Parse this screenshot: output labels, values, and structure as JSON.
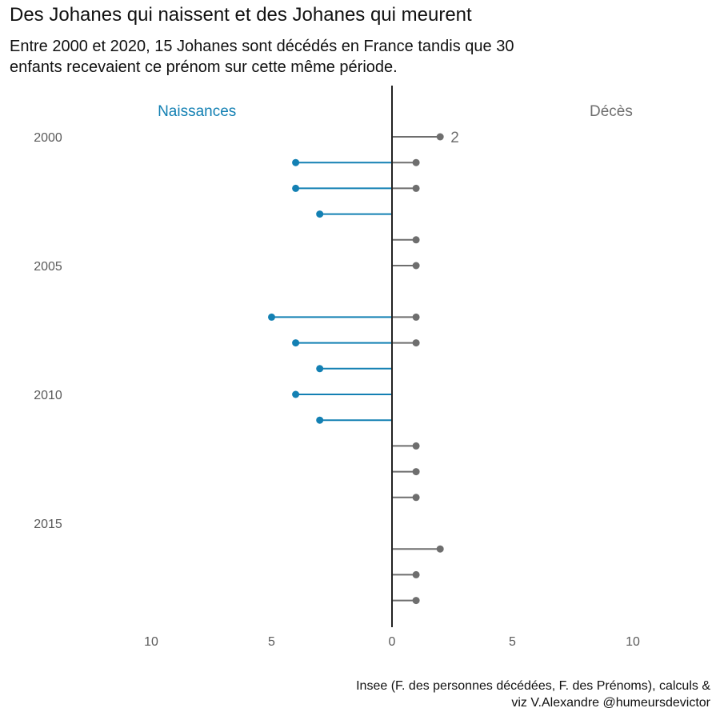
{
  "title": "Des Johanes qui naissent et des Johanes qui meurent",
  "subtitle": [
    "Entre 2000 et 2020, 15 Johanes sont décédés en France tandis que 30",
    "enfants recevaient ce prénom sur cette même période."
  ],
  "caption": [
    "Insee (F. des personnes décédées, F. des Prénoms), calculs &",
    "viz V.Alexandre @humeursdevictor"
  ],
  "colors": {
    "naissances": "#1380b3",
    "deces": "#6e6e6e",
    "axis": "#222222"
  },
  "chart_data": {
    "type": "lollipop",
    "side_labels": {
      "left": "Naissances",
      "right": "Décès"
    },
    "y_ticks": [
      2000,
      2005,
      2010,
      2015
    ],
    "y_tick_labels": [
      "2000",
      "2005",
      "2010",
      "2015"
    ],
    "x_ticks": [
      -10,
      -5,
      0,
      5,
      10
    ],
    "x_tick_labels": [
      "10",
      "5",
      "0",
      "5",
      "10"
    ],
    "xlim": [
      -10,
      10
    ],
    "ylim": [
      2000,
      2018
    ],
    "series": [
      {
        "name": "Naissances",
        "points": [
          {
            "year": 2001,
            "value": 4
          },
          {
            "year": 2002,
            "value": 4
          },
          {
            "year": 2003,
            "value": 3
          },
          {
            "year": 2007,
            "value": 5
          },
          {
            "year": 2008,
            "value": 4
          },
          {
            "year": 2009,
            "value": 3
          },
          {
            "year": 2010,
            "value": 4
          },
          {
            "year": 2011,
            "value": 3
          }
        ]
      },
      {
        "name": "Décès",
        "points": [
          {
            "year": 2000,
            "value": 2
          },
          {
            "year": 2001,
            "value": 1
          },
          {
            "year": 2002,
            "value": 1
          },
          {
            "year": 2004,
            "value": 1
          },
          {
            "year": 2005,
            "value": 1
          },
          {
            "year": 2007,
            "value": 1
          },
          {
            "year": 2008,
            "value": 1
          },
          {
            "year": 2012,
            "value": 1
          },
          {
            "year": 2013,
            "value": 1
          },
          {
            "year": 2014,
            "value": 1
          },
          {
            "year": 2016,
            "value": 2
          },
          {
            "year": 2017,
            "value": 1
          },
          {
            "year": 2018,
            "value": 1
          }
        ]
      }
    ],
    "annotations": [
      {
        "series": "Décès",
        "year": 2000,
        "text": "2"
      }
    ]
  }
}
